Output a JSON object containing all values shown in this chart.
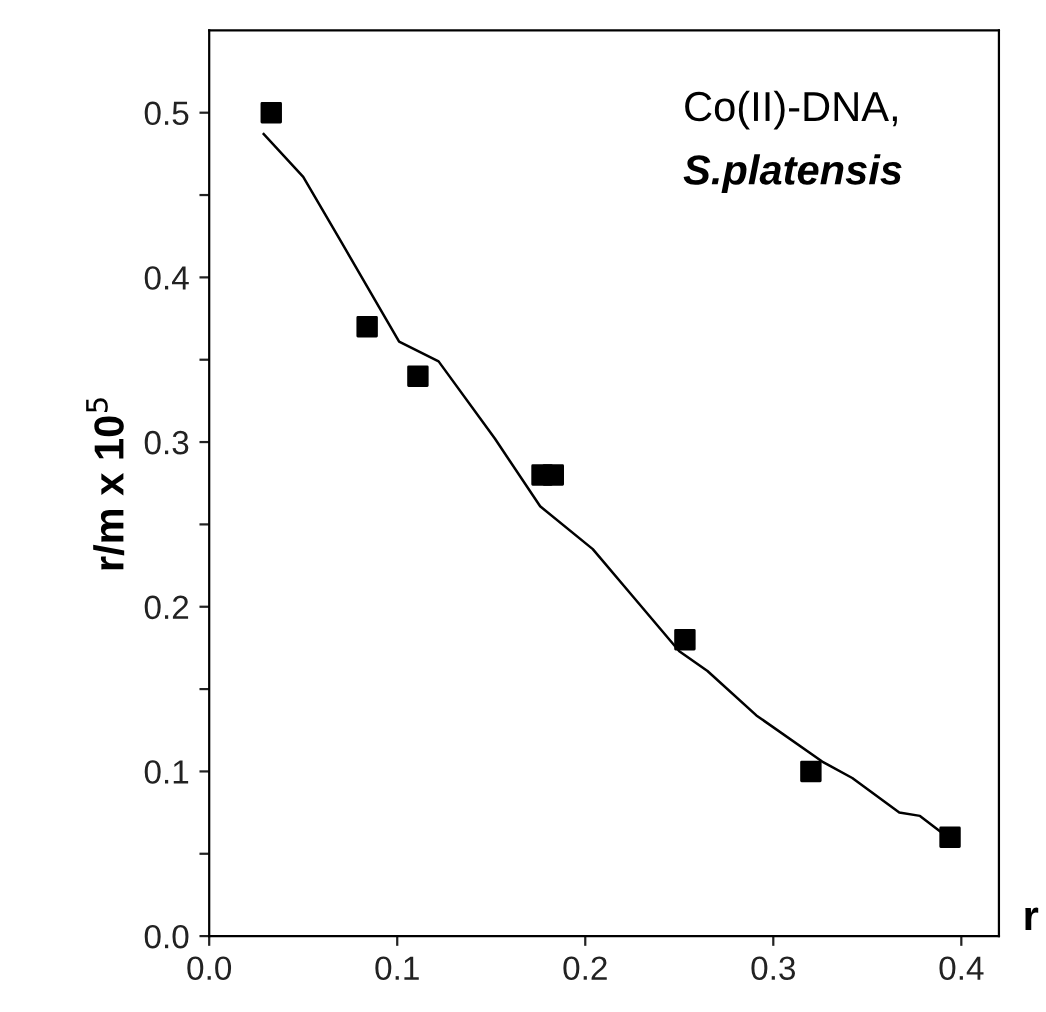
{
  "chart_data": {
    "type": "scatter",
    "xlabel": "r",
    "ylabel": "r/m x 10$^{5}$",
    "annotations": [
      "Co(II)-DNA,",
      "S.platensis"
    ],
    "xlim": [
      0,
      0.42
    ],
    "ylim": [
      0,
      0.55
    ],
    "xticks": [
      {
        "value": 0,
        "label": "0.0"
      },
      0.1,
      0.2,
      0.3,
      0.4
    ],
    "yticks": [
      {
        "value": 0,
        "label": "0.0"
      },
      {
        "value": 0.05,
        "label": null
      },
      0.1,
      {
        "value": 0.15,
        "label": null
      },
      0.2,
      {
        "value": 0.25,
        "label": null
      },
      0.3,
      {
        "value": 0.35,
        "label": null
      },
      0.4,
      {
        "value": 0.45,
        "label": null
      },
      0.5
    ],
    "grid": false,
    "legend": false,
    "series": [
      {
        "marker": "square",
        "color": "#000000",
        "x": [
          0.033,
          0.084,
          0.111,
          0.177,
          0.183,
          0.253,
          0.32,
          0.394
        ],
        "values": [
          0.5,
          0.37,
          0.34,
          0.28,
          0.28,
          0.18,
          0.1,
          0.06
        ]
      },
      {
        "type": "line",
        "marker": "none",
        "line_style": "solid",
        "color": "#000000",
        "x": [
          0.029,
          0.05,
          0.071,
          0.101,
          0.122,
          0.152,
          0.176,
          0.204,
          0.224,
          0.25,
          0.265,
          0.291,
          0.326,
          0.342,
          0.367,
          0.378,
          0.394
        ],
        "values": [
          0.487,
          0.461,
          0.42,
          0.361,
          0.349,
          0.302,
          0.261,
          0.235,
          0.208,
          0.173,
          0.161,
          0.134,
          0.106,
          0.096,
          0.075,
          0.073,
          0.059
        ]
      }
    ]
  }
}
